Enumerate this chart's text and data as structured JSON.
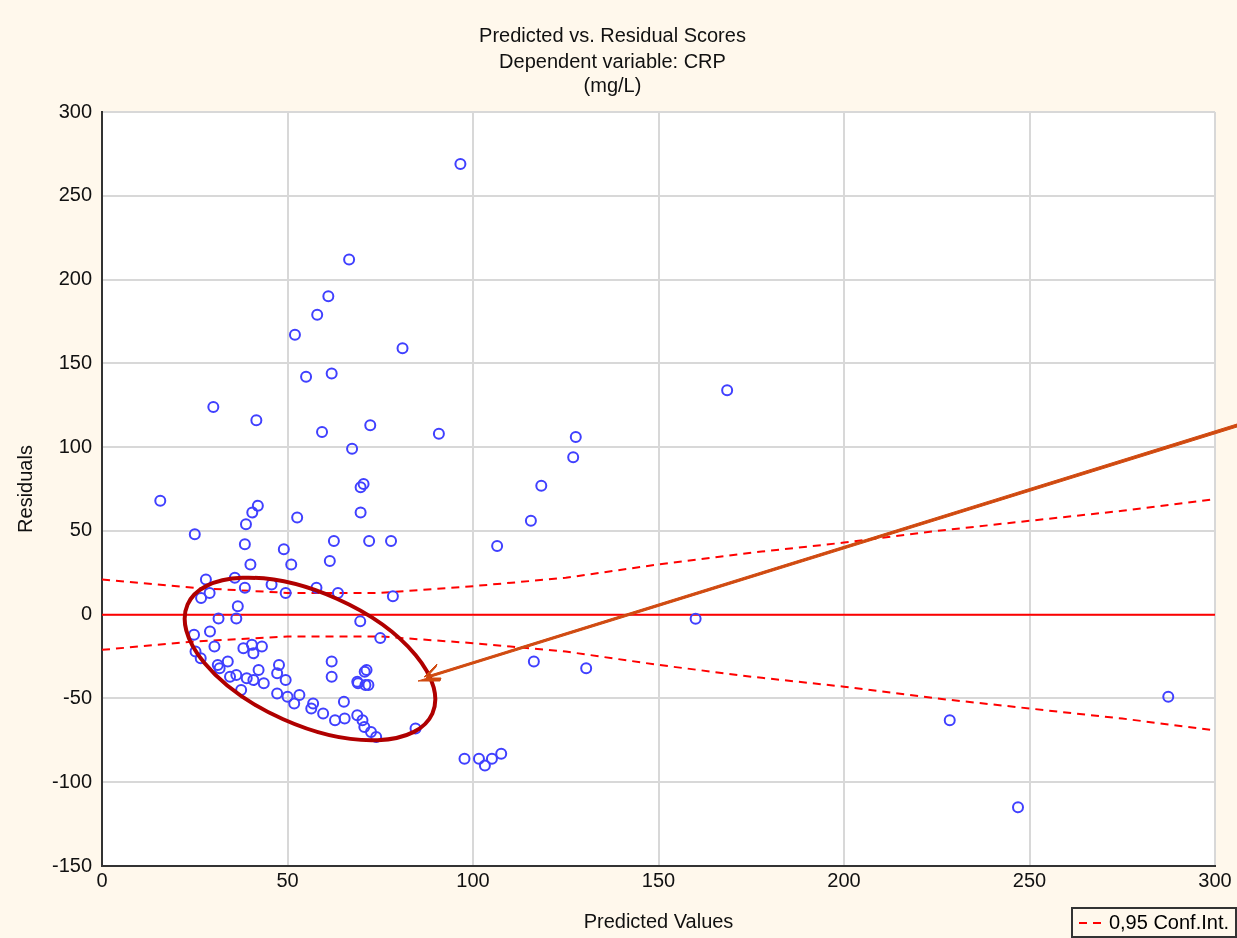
{
  "chart_data": {
    "type": "scatter",
    "title": "Predicted vs. Residual Scores",
    "subtitle": "Dependent variable: CRP\n(mg/L)",
    "xlabel": "Predicted Values",
    "ylabel": "Residuals",
    "xlim": [
      0,
      300
    ],
    "xticks": [
      0,
      50,
      100,
      150,
      200,
      250,
      300
    ],
    "ylim": [
      -150,
      300
    ],
    "yticks": [
      -150,
      -100,
      -50,
      0,
      50,
      100,
      150,
      200,
      250,
      300
    ],
    "grid": true,
    "legend": "bottom right",
    "marker": "circle",
    "ref_lines": [
      {
        "axis": "y",
        "value": 0,
        "color": "#ff0000",
        "line_style": "solid"
      }
    ],
    "series": [
      {
        "type": "scatter",
        "color": "#4040ff",
        "x": [
          15.7,
          25,
          30,
          41.6,
          42,
          40.5,
          38.8,
          38.5,
          38.5,
          35.8,
          28,
          29,
          26.7,
          36.6,
          40,
          49,
          51,
          49.5,
          45.7,
          52.6,
          52,
          55,
          58,
          61,
          66.6,
          96.6,
          59.3,
          61.9,
          67.4,
          72.3,
          81,
          90.8,
          70.5,
          69.7,
          69.7,
          62.5,
          61.4,
          57.8,
          63.6,
          72,
          77.9,
          78.4,
          106.5,
          115.6,
          118.4,
          127,
          127.7,
          168.5,
          160,
          116.4,
          130.5,
          69.6,
          75,
          61.9,
          61.9,
          69,
          71,
          70.8,
          65.2,
          84.5,
          97.7,
          101.6,
          103.2,
          105.1,
          107.6,
          228.5,
          246.9,
          287.4,
          36.2,
          31.4,
          24.8,
          29.1,
          30.3,
          25.2,
          26.6,
          38.1,
          40.4,
          43.1,
          40.8,
          31.2,
          31.7,
          33.9,
          36.2,
          39,
          40.8,
          42.2,
          43.6,
          47.7,
          47.2,
          49.5,
          47.2,
          50,
          51.8,
          53.2,
          56.9,
          56.4,
          59.6,
          62.8,
          65.4,
          68.8,
          71.3,
          71.8,
          68.8,
          70.2,
          70.7,
          72.5,
          73.9,
          37.5,
          34.5
        ],
        "values": [
          68,
          48,
          124,
          116,
          65,
          61,
          54,
          42,
          16,
          22,
          21,
          13,
          10,
          5,
          30,
          39,
          30,
          13,
          18,
          58,
          167,
          142,
          179,
          190,
          212,
          269,
          109,
          144,
          99,
          113,
          159,
          108,
          78,
          76,
          61,
          44,
          32,
          16,
          13,
          44,
          44,
          11,
          41,
          56,
          77,
          94,
          106,
          134,
          -2.5,
          -28,
          -32,
          -4,
          -14,
          -28,
          -37,
          -41,
          -42,
          -34,
          -52,
          -68,
          -86,
          -86,
          -90,
          -86,
          -83,
          -63,
          -115,
          -49,
          -2.3,
          -2.3,
          -12,
          -10,
          -19,
          -22,
          -26,
          -20,
          -18,
          -19,
          -23,
          -30,
          -32,
          -28,
          -36,
          -38,
          -39,
          -33,
          -41,
          -30,
          -35,
          -39,
          -47,
          -49,
          -53,
          -48,
          -53,
          -56,
          -59,
          -63,
          -62,
          -40,
          -33,
          -42,
          -60,
          -63,
          -67,
          -70,
          -73,
          -45,
          -37
        ]
      },
      {
        "type": "line",
        "name": "0,95 Conf.Int.",
        "color": "#ff0000",
        "line_style": "dashed",
        "marker": "none",
        "x": [
          0,
          25,
          50,
          75,
          100,
          125,
          150,
          175,
          200,
          225,
          250,
          275,
          300
        ],
        "values": [
          21,
          16,
          13,
          13,
          17,
          22,
          30,
          37,
          43,
          50,
          56,
          62,
          69
        ]
      },
      {
        "type": "line",
        "color": "#ff0000",
        "line_style": "dashed",
        "marker": "none",
        "x": [
          0,
          25,
          50,
          75,
          100,
          125,
          150,
          175,
          200,
          225,
          250,
          275,
          300
        ],
        "values": [
          -21,
          -16,
          -13,
          -13,
          -17,
          -22,
          -30,
          -37,
          -43,
          -50,
          -56,
          -62,
          -69
        ]
      }
    ]
  }
}
